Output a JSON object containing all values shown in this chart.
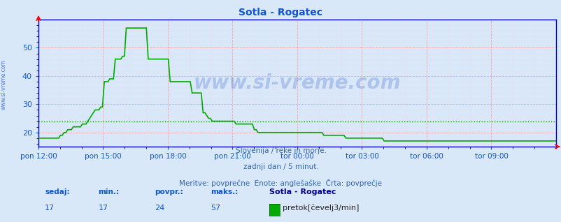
{
  "title": "Sotla - Rogatec",
  "title_color": "#1155cc",
  "bg_color": "#d8e8f8",
  "plot_bg_color": "#d8e8f8",
  "grid_major_color": "#ff9999",
  "grid_minor_color": "#ffcccc",
  "line_color": "#00aa00",
  "avg_line_color": "#009900",
  "avg_value": 24,
  "ymin": 15,
  "ymax": 60,
  "yticks": [
    20,
    30,
    40,
    50
  ],
  "axis_color": "#0000cc",
  "xlabel_color": "#1155cc",
  "watermark": "www.si-vreme.com",
  "subtitle1": "Slovenija / reke in morje.",
  "subtitle2": "zadnji dan / 5 minut.",
  "subtitle3": "Meritve: povprečne  Enote: anglešaške  Črta: povprečje",
  "legend_title": "Sotla - Rogatec",
  "legend_label": "pretok[čevelj3/min]",
  "stat_sedaj": 17,
  "stat_min": 17,
  "stat_povpr": 24,
  "stat_maks": 57,
  "xtick_labels": [
    "pon 12:00",
    "pon 15:00",
    "pon 18:00",
    "pon 21:00",
    "tor 00:00",
    "tor 03:00",
    "tor 06:00",
    "tor 09:00"
  ],
  "xtick_positions": [
    0.0,
    0.125,
    0.25,
    0.375,
    0.5,
    0.625,
    0.75,
    0.875
  ],
  "flow_data": [
    18,
    18,
    18,
    18,
    18,
    18,
    18,
    18,
    18,
    18,
    18,
    18,
    19,
    19,
    20,
    20,
    21,
    21,
    21,
    22,
    22,
    22,
    22,
    22,
    23,
    23,
    23,
    24,
    25,
    26,
    27,
    28,
    28,
    28,
    29,
    29,
    38,
    38,
    38,
    39,
    39,
    39,
    46,
    46,
    46,
    46,
    47,
    47,
    57,
    57,
    57,
    57,
    57,
    57,
    57,
    57,
    57,
    57,
    57,
    57,
    46,
    46,
    46,
    46,
    46,
    46,
    46,
    46,
    46,
    46,
    46,
    46,
    38,
    38,
    38,
    38,
    38,
    38,
    38,
    38,
    38,
    38,
    38,
    38,
    34,
    34,
    34,
    34,
    34,
    34,
    27,
    27,
    26,
    25,
    25,
    24,
    24,
    24,
    24,
    24,
    24,
    24,
    24,
    24,
    24,
    24,
    24,
    24,
    23,
    23,
    23,
    23,
    23,
    23,
    23,
    23,
    23,
    23,
    21,
    21,
    20,
    20,
    20,
    20,
    20,
    20,
    20,
    20,
    20,
    20,
    20,
    20,
    20,
    20,
    20,
    20,
    20,
    20,
    20,
    20,
    20,
    20,
    20,
    20,
    20,
    20,
    20,
    20,
    20,
    20,
    20,
    20,
    20,
    20,
    20,
    20,
    19,
    19,
    19,
    19,
    19,
    19,
    19,
    19,
    19,
    19,
    19,
    19,
    18,
    18,
    18,
    18,
    18,
    18,
    18,
    18,
    18,
    18,
    18,
    18,
    18,
    18,
    18,
    18,
    18,
    18,
    18,
    18,
    18,
    17,
    17,
    17,
    17,
    17,
    17,
    17,
    17,
    17,
    17,
    17,
    17,
    17,
    17,
    17,
    17,
    17,
    17,
    17,
    17,
    17,
    17,
    17,
    17,
    17,
    17,
    17,
    17,
    17,
    17,
    17,
    17,
    17,
    17,
    17,
    17,
    17,
    17,
    17,
    17,
    17,
    17,
    17,
    17,
    17,
    17,
    17,
    17,
    17,
    17,
    17,
    17,
    17,
    17,
    17,
    17,
    17,
    17,
    17,
    17,
    17,
    17,
    17,
    17,
    17,
    17,
    17,
    17,
    17,
    17,
    17,
    17,
    17,
    17,
    17,
    17,
    17,
    17,
    17,
    17,
    17,
    17,
    17,
    17,
    17,
    17,
    17,
    17,
    17,
    17,
    17,
    17,
    17,
    17,
    17
  ]
}
